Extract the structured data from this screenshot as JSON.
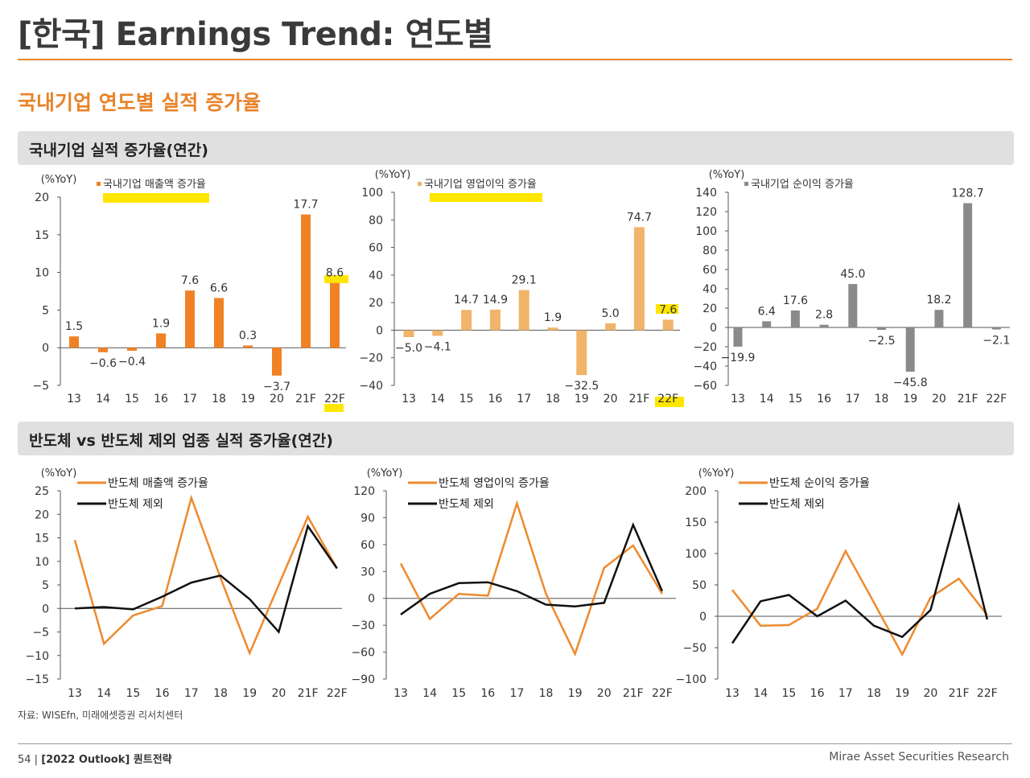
{
  "page": {
    "title": "[한국] Earnings Trend: 연도별",
    "section_title": "국내기업 연도별 실적 증가율",
    "band1_title": "국내기업 실적 증가율(연간)",
    "band2_title": "반도체 vs 반도체 제외 업종 실적 증가율(연간)",
    "source": "자료: WISEfn, 미래에셋증권 리서치센터",
    "footer_page": "54",
    "footer_doc": "[2022 Outlook] 퀀트전략",
    "footer_right": "Mirae Asset Securities Research"
  },
  "colors": {
    "accent": "#e8832a",
    "light_orange": "#f0b46a",
    "gray": "#8a8a8a",
    "black": "#111111",
    "highlight": "#ffe600"
  },
  "chart_data": [
    {
      "type": "bar",
      "unit": "(%YoY)",
      "categories": [
        "13",
        "14",
        "15",
        "16",
        "17",
        "18",
        "19",
        "20",
        "21F",
        "22F"
      ],
      "series": [
        {
          "name": "국내기업 매출액 증가율",
          "values": [
            1.5,
            -0.6,
            -0.4,
            1.9,
            7.6,
            6.6,
            0.3,
            -3.7,
            17.7,
            8.6
          ]
        }
      ],
      "ylim": [
        -5,
        20
      ],
      "yticks": [
        -5,
        0,
        5,
        10,
        15,
        20
      ],
      "color": "#f08225",
      "value_labels": [
        "1.5",
        "-0.6",
        "-0.4",
        "1.9",
        "7.6",
        "6.6",
        "0.3",
        "-3.7",
        "17.7",
        "8.6"
      ]
    },
    {
      "type": "bar",
      "unit": "(%YoY)",
      "categories": [
        "13",
        "14",
        "15",
        "16",
        "17",
        "18",
        "19",
        "20",
        "21F",
        "22F"
      ],
      "series": [
        {
          "name": "국내기업 영업이익 증가율",
          "values": [
            -5.0,
            -4.1,
            14.7,
            14.9,
            29.1,
            1.9,
            -32.5,
            5.0,
            74.7,
            7.6
          ]
        }
      ],
      "ylim": [
        -40,
        100
      ],
      "yticks": [
        -40,
        -20,
        0,
        20,
        40,
        60,
        80,
        100
      ],
      "color": "#f0b46a",
      "value_labels": [
        "-5.0",
        "-4.1",
        "14.7",
        "14.9",
        "29.1",
        "1.9",
        "-32.5",
        "5.0",
        "74.7",
        "7.6"
      ]
    },
    {
      "type": "bar",
      "unit": "(%YoY)",
      "categories": [
        "13",
        "14",
        "15",
        "16",
        "17",
        "18",
        "19",
        "20",
        "21F",
        "22F"
      ],
      "series": [
        {
          "name": "국내기업 순이익 증가율",
          "values": [
            -19.9,
            6.4,
            17.6,
            2.8,
            45.0,
            -2.5,
            -45.8,
            18.2,
            128.7,
            -2.1
          ]
        }
      ],
      "ylim": [
        -60,
        140
      ],
      "yticks": [
        -60,
        -40,
        -20,
        0,
        20,
        40,
        60,
        80,
        100,
        120,
        140
      ],
      "color": "#8a8a8a",
      "value_labels": [
        "-19.9",
        "6.4",
        "17.6",
        "2.8",
        "45.0",
        "-2.5",
        "-45.8",
        "18.2",
        "128.7",
        "-2.1"
      ]
    },
    {
      "type": "line",
      "unit": "(%YoY)",
      "categories": [
        "13",
        "14",
        "15",
        "16",
        "17",
        "18",
        "19",
        "20",
        "21F",
        "22F"
      ],
      "series": [
        {
          "name": "반도체 매출액 증가율",
          "color": "#ee8a2e",
          "values": [
            14.5,
            -7.5,
            -1.5,
            0.5,
            23.5,
            6.5,
            -9.5,
            5,
            19.5,
            8.5
          ]
        },
        {
          "name": "반도체 제외",
          "color": "#111111",
          "values": [
            0,
            0.3,
            -0.2,
            2.5,
            5.5,
            7,
            2,
            -5,
            17.5,
            8.5
          ]
        }
      ],
      "ylim": [
        -15,
        25
      ],
      "yticks": [
        -15,
        -10,
        -5,
        0,
        5,
        10,
        15,
        20,
        25
      ]
    },
    {
      "type": "line",
      "unit": "(%YoY)",
      "categories": [
        "13",
        "14",
        "15",
        "16",
        "17",
        "18",
        "19",
        "20",
        "21F",
        "22F"
      ],
      "series": [
        {
          "name": "반도체 영업이익 증가율",
          "color": "#ee8a2e",
          "values": [
            39,
            -23,
            5,
            3,
            106,
            5,
            -62,
            34,
            59,
            5
          ]
        },
        {
          "name": "반도체 제외",
          "color": "#111111",
          "values": [
            -18,
            5,
            17,
            18,
            8,
            -7,
            -9,
            -5,
            82,
            8
          ]
        }
      ],
      "ylim": [
        -90,
        120
      ],
      "yticks": [
        -90,
        -60,
        -30,
        0,
        30,
        60,
        90,
        120
      ]
    },
    {
      "type": "line",
      "unit": "(%YoY)",
      "categories": [
        "13",
        "14",
        "15",
        "16",
        "17",
        "18",
        "19",
        "20",
        "21F",
        "22F"
      ],
      "series": [
        {
          "name": "반도체 순이익 증가율",
          "color": "#ee8a2e",
          "values": [
            42,
            -15,
            -14,
            12,
            104,
            22,
            -61,
            30,
            60,
            2
          ]
        },
        {
          "name": "반도체 제외",
          "color": "#111111",
          "values": [
            -43,
            24,
            34,
            0,
            25,
            -15,
            -33,
            10,
            176,
            -5
          ]
        }
      ],
      "ylim": [
        -100,
        200
      ],
      "yticks": [
        -100,
        -50,
        0,
        50,
        100,
        150,
        200
      ]
    }
  ]
}
